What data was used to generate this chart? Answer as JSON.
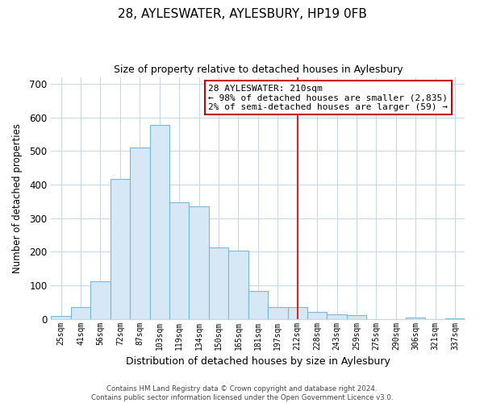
{
  "title": "28, AYLESWATER, AYLESBURY, HP19 0FB",
  "subtitle": "Size of property relative to detached houses in Aylesbury",
  "xlabel": "Distribution of detached houses by size in Aylesbury",
  "ylabel": "Number of detached properties",
  "bar_labels": [
    "25sqm",
    "41sqm",
    "56sqm",
    "72sqm",
    "87sqm",
    "103sqm",
    "119sqm",
    "134sqm",
    "150sqm",
    "165sqm",
    "181sqm",
    "197sqm",
    "212sqm",
    "228sqm",
    "243sqm",
    "259sqm",
    "275sqm",
    "290sqm",
    "306sqm",
    "321sqm",
    "337sqm"
  ],
  "bar_values": [
    8,
    35,
    112,
    417,
    510,
    578,
    347,
    335,
    212,
    204,
    83,
    36,
    35,
    20,
    13,
    11,
    0,
    0,
    3,
    0,
    2
  ],
  "bar_color": "#d6e8f5",
  "bar_edge_color": "#7ab8d9",
  "vline_color": "#cc0000",
  "vline_x_idx": 12,
  "annotation_title": "28 AYLESWATER: 210sqm",
  "annotation_line1": "← 98% of detached houses are smaller (2,835)",
  "annotation_line2": "2% of semi-detached houses are larger (59) →",
  "annotation_box_color": "#ffffff",
  "annotation_box_edge_color": "#cc0000",
  "ylim": [
    0,
    720
  ],
  "yticks": [
    0,
    100,
    200,
    300,
    400,
    500,
    600,
    700
  ],
  "footer_line1": "Contains HM Land Registry data © Crown copyright and database right 2024.",
  "footer_line2": "Contains public sector information licensed under the Open Government Licence v3.0.",
  "background_color": "#ffffff",
  "grid_color": "#c8d8e8"
}
